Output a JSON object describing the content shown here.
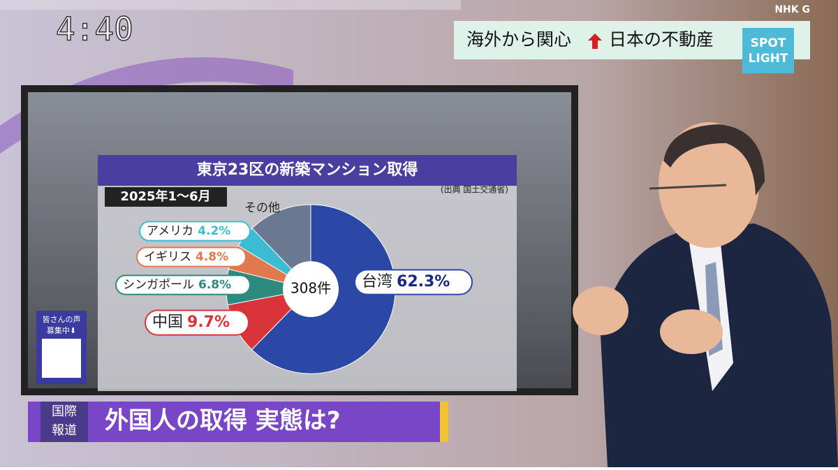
{
  "broadcast": {
    "clock": "4:40",
    "channel": "NHK G",
    "headline_left": "海外から関心",
    "headline_right": "日本の不動産",
    "badge_top": "SPOT",
    "badge_bottom": "LIGHT",
    "qr_caption_1": "皆さんの声",
    "qr_caption_2": "募集中⬇",
    "segment_tag_1": "国際",
    "segment_tag_2": "報道",
    "lower_third": "外国人の取得 実態は?"
  },
  "chart_data": {
    "type": "donut",
    "title": "東京23区の新築マンション取得",
    "subtitle": "2025年1〜6月",
    "source": "(出典 国土交通省)",
    "center_label": "308件",
    "categories": [
      "台湾",
      "中国",
      "シンガポール",
      "イギリス",
      "アメリカ",
      "その他"
    ],
    "values": [
      62.3,
      9.7,
      6.8,
      4.8,
      4.2,
      12.2
    ],
    "value_labels": [
      "62.3%",
      "9.7%",
      "6.8%",
      "4.8%",
      "4.2%",
      null
    ],
    "colors": [
      "#2b48a6",
      "#d8343a",
      "#2c8a7e",
      "#e2784e",
      "#3cbcd2",
      "#6b7892"
    ]
  }
}
